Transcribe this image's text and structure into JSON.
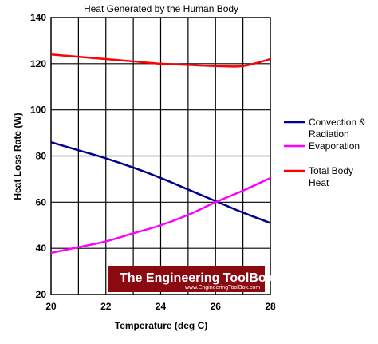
{
  "chart_data": {
    "type": "line",
    "title": "Heat Generated by the Human Body",
    "xlabel": "Temperature (deg C)",
    "ylabel": "Heat Loss Rate (W)",
    "xlim": [
      20,
      28
    ],
    "ylim": [
      20,
      140
    ],
    "x_ticks": [
      "20",
      "22",
      "24",
      "26",
      "28"
    ],
    "y_ticks": [
      "20",
      "40",
      "60",
      "80",
      "100",
      "120",
      "140"
    ],
    "grid": true,
    "legend_position": "right",
    "x": [
      20,
      21,
      22,
      23,
      24,
      25,
      26,
      27,
      28
    ],
    "series": [
      {
        "name": "Convection & Radiation",
        "lines": [
          "Convection &",
          "Radiation"
        ],
        "color": "#00008b",
        "values": [
          86,
          82.5,
          79,
          75,
          70.5,
          65.5,
          60.5,
          55.5,
          51
        ]
      },
      {
        "name": "Evaporation",
        "lines": [
          "Evaporation"
        ],
        "color": "#ff00ff",
        "values": [
          38,
          40.5,
          43,
          46.5,
          50,
          54.5,
          60,
          65,
          70.5
        ]
      },
      {
        "name": "Total Body Heat",
        "lines": [
          "Total Body",
          "Heat"
        ],
        "color": "#ff0000",
        "values": [
          124,
          123,
          122,
          121,
          120,
          119.5,
          119,
          119,
          122
        ]
      }
    ]
  },
  "watermark": {
    "main": "The Engineering ToolBox",
    "sub": "www.EngineeringToolBox.com"
  }
}
